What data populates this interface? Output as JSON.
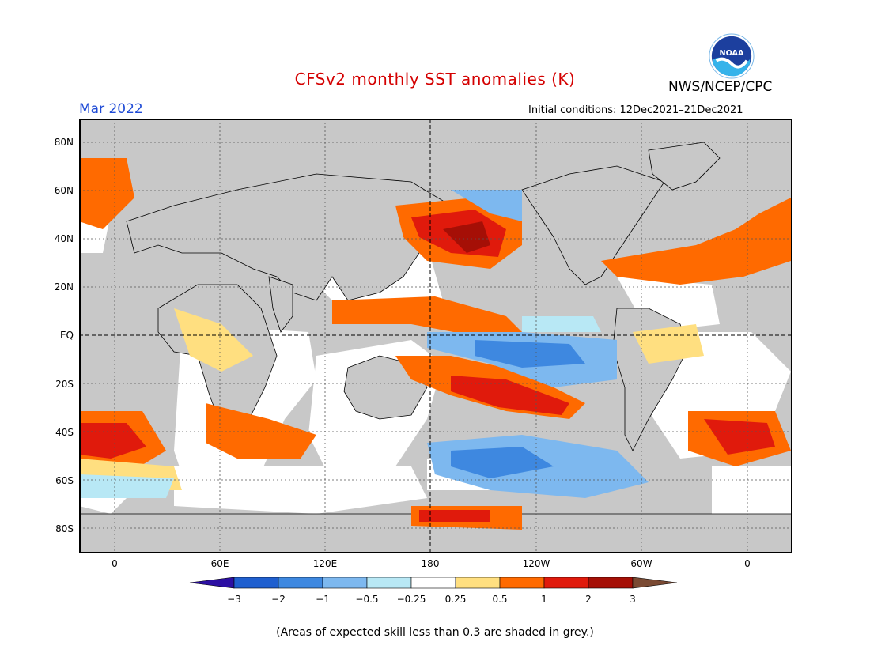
{
  "header": {
    "title": "CFSv2 monthly SST anomalies (K)",
    "agency": "NWS/NCEP/CPC",
    "logo_text": "NOAA",
    "valid_month": "Mar 2022",
    "initial_conditions": "Initial conditions: 12Dec2021–21Dec2021"
  },
  "map": {
    "lat_labels": [
      "80N",
      "60N",
      "40N",
      "20N",
      "EQ",
      "20S",
      "40S",
      "60S",
      "80S"
    ],
    "lon_labels": [
      "0",
      "60E",
      "120E",
      "180",
      "120W",
      "60W",
      "0"
    ],
    "projection": "cylindrical equidistant",
    "grid": "dashed"
  },
  "colorbar": {
    "ticks": [
      "−3",
      "−2",
      "−1",
      "−0.5",
      "−0.25",
      "0.25",
      "0.5",
      "1",
      "2",
      "3"
    ],
    "colors": [
      "#2c0fa3",
      "#1f5fcf",
      "#3e88e0",
      "#7db8ef",
      "#b8e8f5",
      "#ffffff",
      "#ffdf80",
      "#ff6a00",
      "#e01a0c",
      "#a50f06",
      "#7a4a33"
    ]
  },
  "footnote": "(Areas of expected skill less than 0.3 are shaded in grey.)"
}
